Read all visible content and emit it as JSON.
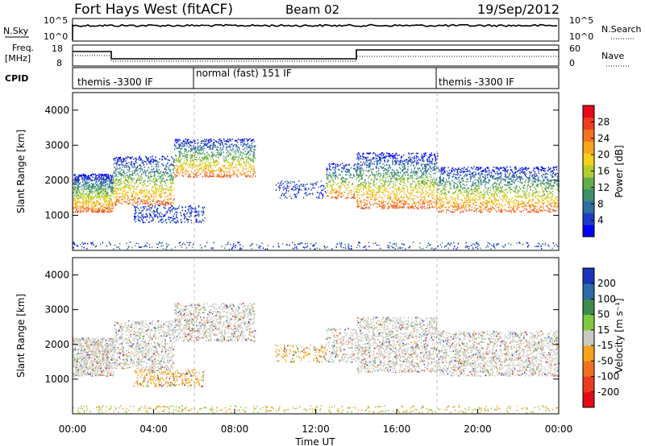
{
  "header": {
    "title": "Fort Hays West (fitACF)",
    "beam": "Beam 02",
    "date": "19/Sep/2012"
  },
  "top_panels": {
    "nsky": {
      "label": "N.Sky",
      "tick_top": "10^5",
      "tick_bottom": "10^0",
      "right_label": "N.Search",
      "right_tick_top": "10^5",
      "right_tick_bottom": "10^0"
    },
    "freq": {
      "label_line1": "Freq.",
      "label_line2": "[MHz]",
      "tick_top": "18",
      "tick_bottom": "8",
      "right_label": "Nave",
      "right_tick_top": "60",
      "right_tick_bottom": "0"
    },
    "cpid": {
      "label": "CPID",
      "segments": [
        {
          "start_h": 0.0,
          "text": "themis -3300 IF"
        },
        {
          "start_h": 6.0,
          "text": "normal (fast) 151 IF"
        },
        {
          "start_h": 18.0,
          "text": "themis -3300 IF"
        }
      ]
    }
  },
  "chart_data": [
    {
      "type": "heatmap",
      "name": "power-panel",
      "ylabel": "Slant Range [km]",
      "xlim_hours": [
        0,
        24
      ],
      "ylim": [
        0,
        4500
      ],
      "yticks": [
        "1000",
        "2000",
        "3000",
        "4000"
      ],
      "colorbar": {
        "label": "Power [dB]",
        "ticks": [
          "4",
          "8",
          "12",
          "16",
          "20",
          "24",
          "28"
        ],
        "colors": [
          "#0000ff",
          "#1f3cc8",
          "#2e6e9e",
          "#3d8f6e",
          "#63ad4a",
          "#b5cc2d",
          "#f5d21a",
          "#f7a41e",
          "#f47320",
          "#ef3d1e",
          "#e8081b"
        ]
      }
    },
    {
      "type": "heatmap",
      "name": "velocity-panel",
      "ylabel": "Slant Range [km]",
      "xlabel": "Time UT",
      "xlim_hours": [
        0,
        24
      ],
      "ylim": [
        0,
        4500
      ],
      "yticks": [
        "1000",
        "2000",
        "3000",
        "4000"
      ],
      "xticks": [
        "00:00",
        "04:00",
        "08:00",
        "12:00",
        "16:00",
        "20:00",
        "00:00"
      ],
      "colorbar": {
        "label": "Velocity [m s⁻¹]",
        "ticks": [
          "200",
          "100",
          "50",
          "15",
          "-15",
          "-50",
          "-100",
          "-200"
        ],
        "colors": [
          "#1a33b8",
          "#2f6aa8",
          "#3f8a4c",
          "#7ec940",
          "#c9c9c0",
          "#f5a31b",
          "#f07020",
          "#ec3a1e",
          "#e40a1a"
        ]
      }
    }
  ]
}
